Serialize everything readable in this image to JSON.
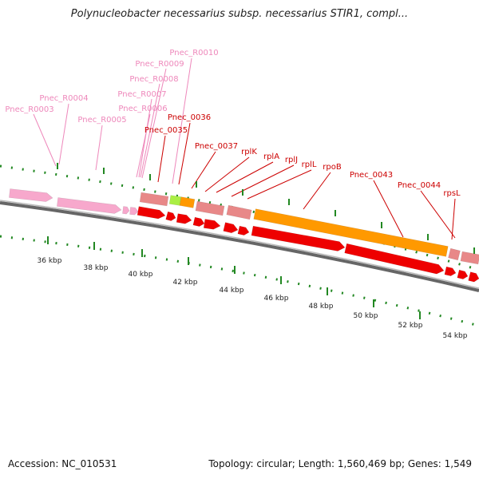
{
  "title": "Polynucleobacter necessarius subsp. necessarius STIR1, compl...",
  "footer": {
    "accession": "Accession: NC_010531",
    "summary": "Topology: circular; Length: 1,560,469 bp; Genes: 1,549"
  },
  "colors": {
    "rna_label": "#ee88bb",
    "gene_label": "#cc0000",
    "tick": "#228822",
    "backbone": "#777777",
    "rna_feature": "#f7a8cc",
    "gene_feature": "#ee0000",
    "gene_feature_light": "#e88888",
    "rpoB_feature": "#ff9900",
    "rna_small": "#aaee44"
  },
  "scale_labels": [
    "36 kbp",
    "38 kbp",
    "40 kbp",
    "42 kbp",
    "44 kbp",
    "46 kbp",
    "48 kbp",
    "50 kbp",
    "52 kbp",
    "54 kbp"
  ],
  "rna_labels": [
    "Pnec_R0003",
    "Pnec_R0004",
    "Pnec_R0005",
    "Pnec_R0006",
    "Pnec_R0007",
    "Pnec_R0008",
    "Pnec_R0009",
    "Pnec_R0010"
  ],
  "gene_labels": [
    "Pnec_0035",
    "Pnec_0036",
    "Pnec_0037",
    "rplK",
    "rplA",
    "rplJ",
    "rplL",
    "rpoB",
    "Pnec_0043",
    "Pnec_0044",
    "rpsL"
  ]
}
